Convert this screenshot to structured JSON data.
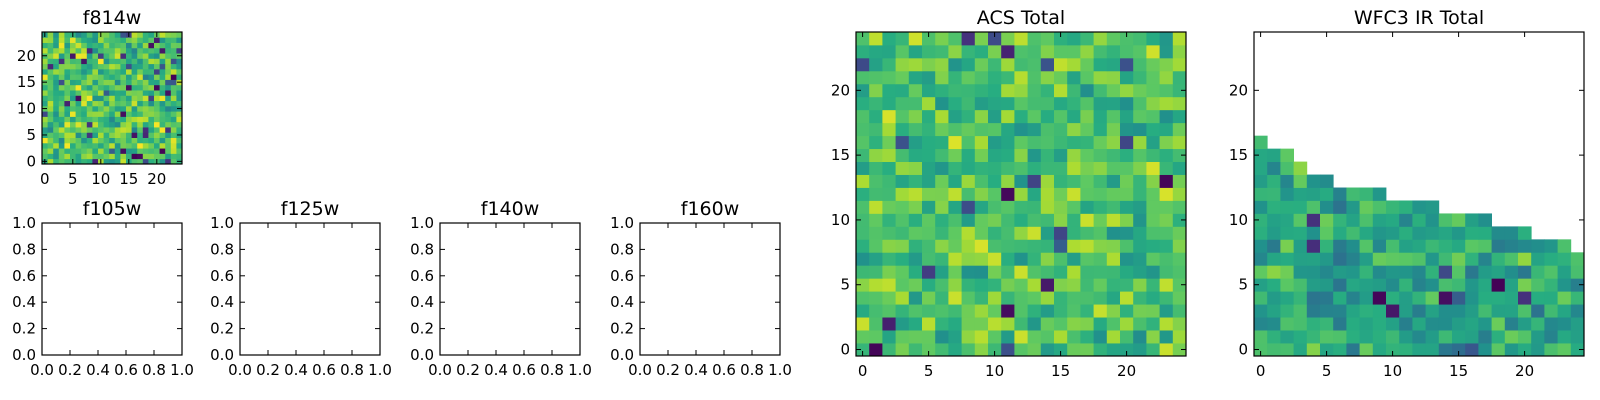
{
  "figure": {
    "background": "#ffffff",
    "colormap": "viridis"
  },
  "chart_data": [
    {
      "id": "f814w",
      "type": "heatmap",
      "title": "f814w",
      "xlim": [
        -0.5,
        24.5
      ],
      "ylim": [
        -0.5,
        24.5
      ],
      "xticks": [
        "0",
        "5",
        "10",
        "15",
        "20"
      ],
      "xtick_values": [
        0,
        5,
        10,
        15,
        20
      ],
      "yticks": [
        "0",
        "5",
        "10",
        "15",
        "20"
      ],
      "ytick_values": [
        0,
        5,
        10,
        15,
        20
      ],
      "grid": {
        "nx": 25,
        "ny": 25,
        "seed": 11,
        "dark_fraction": 0.07,
        "mean": 0.72,
        "spread": 0.18
      }
    },
    {
      "id": "f105w",
      "type": "heatmap",
      "title": "f105w",
      "empty": true,
      "xlim": [
        0,
        1
      ],
      "ylim": [
        0,
        1
      ],
      "xticks": [
        "0.0",
        "0.2",
        "0.4",
        "0.6",
        "0.8",
        "1.0"
      ],
      "xtick_values": [
        0,
        0.2,
        0.4,
        0.6,
        0.8,
        1.0
      ],
      "yticks": [
        "0.0",
        "0.2",
        "0.4",
        "0.6",
        "0.8",
        "1.0"
      ],
      "ytick_values": [
        0,
        0.2,
        0.4,
        0.6,
        0.8,
        1.0
      ]
    },
    {
      "id": "f125w",
      "type": "heatmap",
      "title": "f125w",
      "empty": true,
      "xlim": [
        0,
        1
      ],
      "ylim": [
        0,
        1
      ],
      "xticks": [
        "0.0",
        "0.2",
        "0.4",
        "0.6",
        "0.8",
        "1.0"
      ],
      "xtick_values": [
        0,
        0.2,
        0.4,
        0.6,
        0.8,
        1.0
      ],
      "yticks": [
        "0.0",
        "0.2",
        "0.4",
        "0.6",
        "0.8",
        "1.0"
      ],
      "ytick_values": [
        0,
        0.2,
        0.4,
        0.6,
        0.8,
        1.0
      ]
    },
    {
      "id": "f140w",
      "type": "heatmap",
      "title": "f140w",
      "empty": true,
      "xlim": [
        0,
        1
      ],
      "ylim": [
        0,
        1
      ],
      "xticks": [
        "0.0",
        "0.2",
        "0.4",
        "0.6",
        "0.8",
        "1.0"
      ],
      "xtick_values": [
        0,
        0.2,
        0.4,
        0.6,
        0.8,
        1.0
      ],
      "yticks": [
        "0.0",
        "0.2",
        "0.4",
        "0.6",
        "0.8",
        "1.0"
      ],
      "ytick_values": [
        0,
        0.2,
        0.4,
        0.6,
        0.8,
        1.0
      ]
    },
    {
      "id": "f160w",
      "type": "heatmap",
      "title": "f160w",
      "empty": true,
      "xlim": [
        0,
        1
      ],
      "ylim": [
        0,
        1
      ],
      "xticks": [
        "0.0",
        "0.2",
        "0.4",
        "0.6",
        "0.8",
        "1.0"
      ],
      "xtick_values": [
        0,
        0.2,
        0.4,
        0.6,
        0.8,
        1.0
      ],
      "yticks": [
        "0.0",
        "0.2",
        "0.4",
        "0.6",
        "0.8",
        "1.0"
      ],
      "ytick_values": [
        0,
        0.2,
        0.4,
        0.6,
        0.8,
        1.0
      ]
    },
    {
      "id": "acs-total",
      "type": "heatmap",
      "title": "ACS Total",
      "xlim": [
        -0.5,
        24.5
      ],
      "ylim": [
        -0.5,
        24.5
      ],
      "xticks": [
        "0",
        "5",
        "10",
        "15",
        "20"
      ],
      "xtick_values": [
        0,
        5,
        10,
        15,
        20
      ],
      "yticks": [
        "0",
        "5",
        "10",
        "15",
        "20"
      ],
      "ytick_values": [
        0,
        5,
        10,
        15,
        20
      ],
      "grid": {
        "nx": 25,
        "ny": 25,
        "seed": 37,
        "dark_fraction": 0.04,
        "mean": 0.72,
        "spread": 0.16
      }
    },
    {
      "id": "wfc3-ir-total",
      "type": "heatmap",
      "title": "WFC3 IR Total",
      "xlim": [
        -0.5,
        24.5
      ],
      "ylim": [
        -0.5,
        24.5
      ],
      "xticks": [
        "0",
        "5",
        "10",
        "15",
        "20"
      ],
      "xtick_values": [
        0,
        5,
        10,
        15,
        20
      ],
      "yticks": [
        "0",
        "5",
        "10",
        "15",
        "20"
      ],
      "ytick_values": [
        0,
        5,
        10,
        15,
        20
      ],
      "grid": {
        "nx": 25,
        "ny": 25,
        "seed": 83,
        "dark_fraction": 0.03,
        "mean": 0.6,
        "spread": 0.16
      },
      "column_tops": [
        16,
        15,
        15,
        14,
        13,
        13,
        12,
        12,
        12,
        12,
        11,
        11,
        11,
        11,
        10,
        10,
        10,
        10,
        9,
        9,
        9,
        8,
        8,
        8,
        7
      ]
    }
  ]
}
